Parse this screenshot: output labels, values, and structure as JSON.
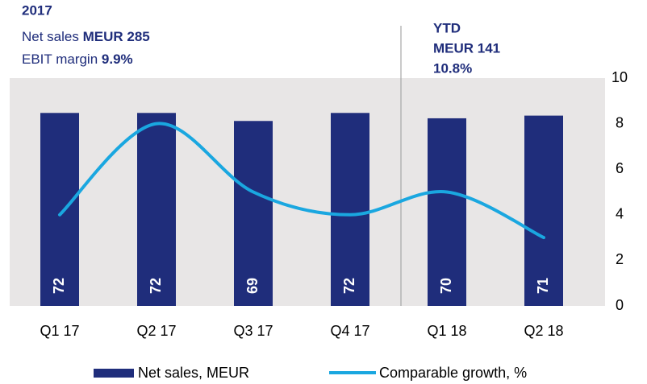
{
  "chart_data": {
    "type": "bar_line",
    "annotations": {
      "year": "2017",
      "net_sales_label": "Net sales",
      "net_sales_value": "MEUR 285",
      "ebit_label": "EBIT margin",
      "ebit_value": "9.9%",
      "ytd_title": "YTD",
      "ytd_sales": "MEUR 141",
      "ytd_margin": "10.8%"
    },
    "categories": [
      "Q1 17",
      "Q2 17",
      "Q3 17",
      "Q4 17",
      "Q1 18",
      "Q2 18"
    ],
    "series": [
      {
        "name": "Net sales, MEUR",
        "color": "#1f2d7b",
        "values": [
          72,
          72,
          69,
          72,
          70,
          71
        ]
      },
      {
        "name": "Comparable growth, %",
        "color": "#1aa7e0",
        "axis": "y2",
        "values": [
          4,
          8,
          5,
          4,
          5,
          3
        ]
      }
    ],
    "ylim": [
      0,
      85
    ],
    "y2lim": [
      0,
      10
    ],
    "y2ticks": [
      0,
      2,
      4,
      6,
      8,
      10
    ]
  }
}
